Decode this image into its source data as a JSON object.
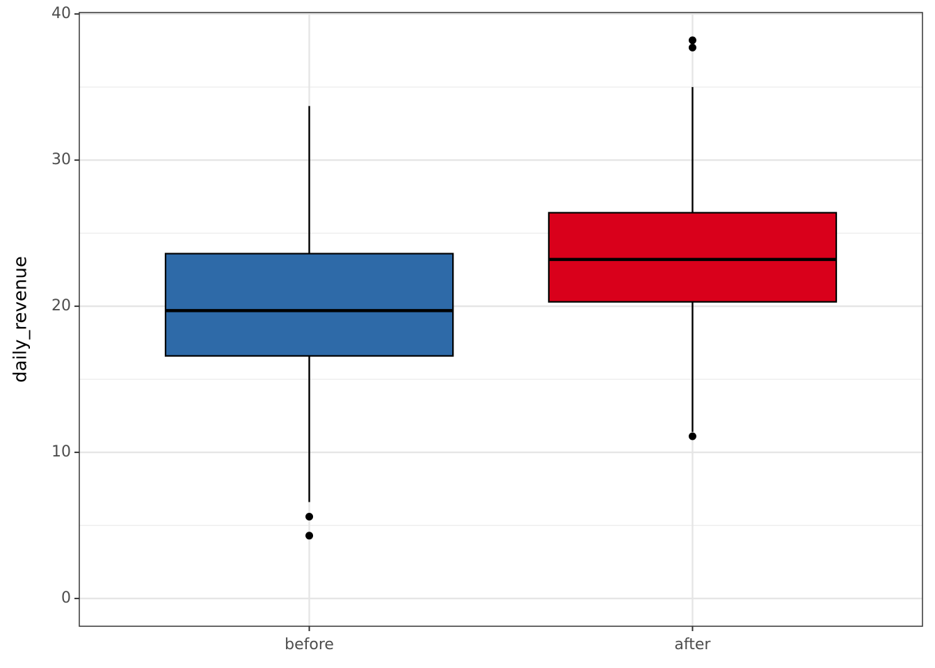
{
  "chart_data": {
    "type": "box",
    "y_label": "daily_revenue",
    "categories": [
      "before",
      "after"
    ],
    "boxes": [
      {
        "min": 6.6,
        "q1": 16.6,
        "median": 19.7,
        "q3": 23.6,
        "max": 33.7,
        "outliers": [
          5.6,
          4.3
        ],
        "color": "#2e6aa8"
      },
      {
        "min": 11.4,
        "q1": 20.3,
        "median": 23.2,
        "q3": 26.4,
        "max": 35.0,
        "outliers": [
          38.2,
          37.7,
          11.1
        ],
        "color": "#d9001b"
      }
    ],
    "ylim": [
      -1.9,
      40.1
    ],
    "yticks": [
      0,
      10,
      20,
      30,
      40
    ],
    "minor_yticks": [
      5,
      15,
      25,
      35
    ],
    "grid": true
  }
}
